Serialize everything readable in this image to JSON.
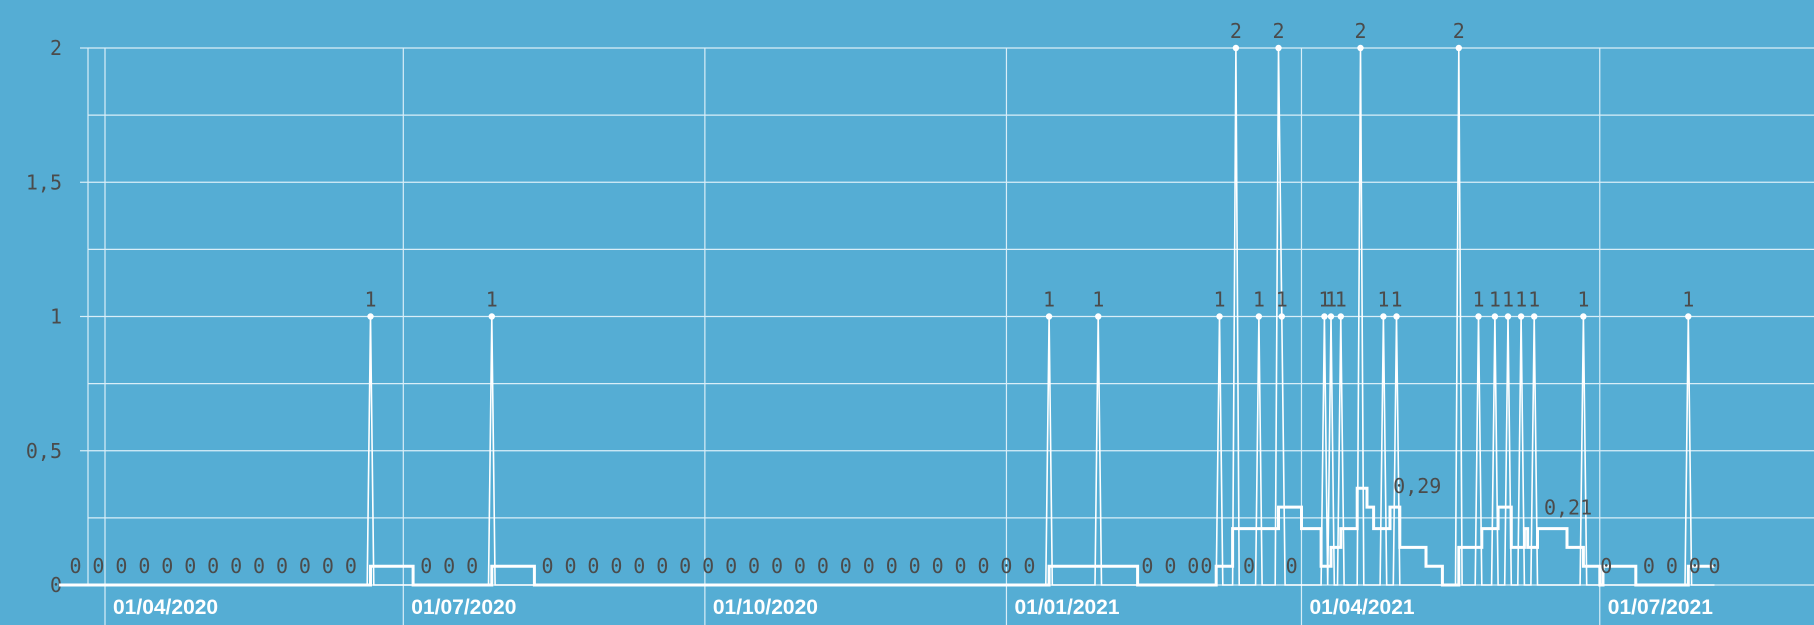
{
  "chart_data": {
    "type": "line",
    "grid": true,
    "ylim": [
      0,
      2
    ],
    "y_ticks": [
      "0",
      "0,5",
      "1",
      "1,5",
      "2"
    ],
    "x_ticks": [
      "01/04/2020",
      "01/07/2020",
      "01/10/2020",
      "01/01/2021",
      "01/04/2021",
      "01/07/2021"
    ],
    "x_range": [
      "2020-03-18",
      "2021-08-05"
    ],
    "series": [
      {
        "values_description_hidden": "",
        "points": [
          [
            "2020-03-19",
            0
          ],
          [
            "2020-06-20",
            0
          ],
          [
            "2020-06-21",
            1
          ],
          [
            "2020-06-22",
            0
          ],
          [
            "2020-07-27",
            0
          ],
          [
            "2020-07-28",
            1
          ],
          [
            "2020-07-29",
            0
          ],
          [
            "2021-01-13",
            0
          ],
          [
            "2021-01-14",
            1
          ],
          [
            "2021-01-15",
            0
          ],
          [
            "2021-01-28",
            0
          ],
          [
            "2021-01-29",
            1
          ],
          [
            "2021-01-30",
            0
          ],
          [
            "2021-03-06",
            0
          ],
          [
            "2021-03-07",
            1
          ],
          [
            "2021-03-08",
            0
          ],
          [
            "2021-03-11",
            0
          ],
          [
            "2021-03-12",
            2
          ],
          [
            "2021-03-13",
            0
          ],
          [
            "2021-03-18",
            0
          ],
          [
            "2021-03-19",
            1
          ],
          [
            "2021-03-20",
            0
          ],
          [
            "2021-03-24",
            0
          ],
          [
            "2021-03-25",
            2
          ],
          [
            "2021-03-26",
            1
          ],
          [
            "2021-03-27",
            0
          ],
          [
            "2021-04-07",
            0
          ],
          [
            "2021-04-08",
            1
          ],
          [
            "2021-04-09",
            0
          ],
          [
            "2021-04-10",
            1
          ],
          [
            "2021-04-11",
            0
          ],
          [
            "2021-04-12",
            0
          ],
          [
            "2021-04-13",
            1
          ],
          [
            "2021-04-14",
            0
          ],
          [
            "2021-04-18",
            0
          ],
          [
            "2021-04-19",
            2
          ],
          [
            "2021-04-20",
            0
          ],
          [
            "2021-04-25",
            0
          ],
          [
            "2021-04-26",
            1
          ],
          [
            "2021-04-27",
            0
          ],
          [
            "2021-04-29",
            0
          ],
          [
            "2021-04-30",
            1
          ],
          [
            "2021-05-01",
            0
          ],
          [
            "2021-05-18",
            0
          ],
          [
            "2021-05-19",
            2
          ],
          [
            "2021-05-20",
            0
          ],
          [
            "2021-05-24",
            0
          ],
          [
            "2021-05-25",
            1
          ],
          [
            "2021-05-26",
            0
          ],
          [
            "2021-05-29",
            0
          ],
          [
            "2021-05-30",
            1
          ],
          [
            "2021-05-31",
            0
          ],
          [
            "2021-06-02",
            0
          ],
          [
            "2021-06-03",
            1
          ],
          [
            "2021-06-04",
            0
          ],
          [
            "2021-06-06",
            0
          ],
          [
            "2021-06-07",
            1
          ],
          [
            "2021-06-08",
            0
          ],
          [
            "2021-06-10",
            0
          ],
          [
            "2021-06-11",
            1
          ],
          [
            "2021-06-12",
            0
          ],
          [
            "2021-06-25",
            0
          ],
          [
            "2021-06-26",
            1
          ],
          [
            "2021-06-27",
            0
          ],
          [
            "2021-07-27",
            0
          ],
          [
            "2021-07-28",
            1
          ],
          [
            "2021-07-29",
            0
          ],
          [
            "2021-08-05",
            0
          ]
        ]
      },
      {
        "points": [
          [
            "2020-03-18",
            0
          ],
          [
            "2020-06-21",
            0
          ],
          [
            "2020-06-21",
            0.07
          ],
          [
            "2020-07-04",
            0.07
          ],
          [
            "2020-07-04",
            0
          ],
          [
            "2020-07-28",
            0
          ],
          [
            "2020-07-28",
            0.07
          ],
          [
            "2020-08-10",
            0.07
          ],
          [
            "2020-08-10",
            0
          ],
          [
            "2021-01-14",
            0
          ],
          [
            "2021-01-14",
            0.07
          ],
          [
            "2021-01-28",
            0.07
          ],
          [
            "2021-01-29",
            0.07
          ],
          [
            "2021-02-10",
            0.07
          ],
          [
            "2021-02-10",
            0
          ],
          [
            "2021-03-06",
            0
          ],
          [
            "2021-03-06",
            0.07
          ],
          [
            "2021-03-11",
            0.07
          ],
          [
            "2021-03-11",
            0.21
          ],
          [
            "2021-03-19",
            0.21
          ],
          [
            "2021-03-19",
            0.21
          ],
          [
            "2021-03-24",
            0.21
          ],
          [
            "2021-03-25",
            0.21
          ],
          [
            "2021-03-25",
            0.29
          ],
          [
            "2021-04-01",
            0.29
          ],
          [
            "2021-04-01",
            0.21
          ],
          [
            "2021-04-07",
            0.21
          ],
          [
            "2021-04-07",
            0.07
          ],
          [
            "2021-04-10",
            0.07
          ],
          [
            "2021-04-10",
            0.14
          ],
          [
            "2021-04-13",
            0.14
          ],
          [
            "2021-04-13",
            0.21
          ],
          [
            "2021-04-18",
            0.21
          ],
          [
            "2021-04-18",
            0.36
          ],
          [
            "2021-04-21",
            0.36
          ],
          [
            "2021-04-21",
            0.29
          ],
          [
            "2021-04-23",
            0.29
          ],
          [
            "2021-04-23",
            0.21
          ],
          [
            "2021-04-26",
            0.21
          ],
          [
            "2021-04-26",
            0.21
          ],
          [
            "2021-04-28",
            0.21
          ],
          [
            "2021-04-28",
            0.29
          ],
          [
            "2021-05-01",
            0.29
          ],
          [
            "2021-05-01",
            0.14
          ],
          [
            "2021-05-09",
            0.14
          ],
          [
            "2021-05-09",
            0.07
          ],
          [
            "2021-05-14",
            0.07
          ],
          [
            "2021-05-14",
            0
          ],
          [
            "2021-05-19",
            0
          ],
          [
            "2021-05-19",
            0.14
          ],
          [
            "2021-05-26",
            0.14
          ],
          [
            "2021-05-26",
            0.21
          ],
          [
            "2021-05-31",
            0.21
          ],
          [
            "2021-05-31",
            0.29
          ],
          [
            "2021-06-04",
            0.29
          ],
          [
            "2021-06-04",
            0.14
          ],
          [
            "2021-06-08",
            0.14
          ],
          [
            "2021-06-08",
            0.21
          ],
          [
            "2021-06-09",
            0.21
          ],
          [
            "2021-06-09",
            0.14
          ],
          [
            "2021-06-12",
            0.14
          ],
          [
            "2021-06-12",
            0.21
          ],
          [
            "2021-06-21",
            0.21
          ],
          [
            "2021-06-21",
            0.14
          ],
          [
            "2021-06-26",
            0.14
          ],
          [
            "2021-06-26",
            0.07
          ],
          [
            "2021-07-01",
            0.07
          ],
          [
            "2021-07-01",
            0
          ],
          [
            "2021-07-02",
            0
          ],
          [
            "2021-07-02",
            0.07
          ],
          [
            "2021-07-12",
            0.07
          ],
          [
            "2021-07-12",
            0
          ],
          [
            "2021-07-28",
            0
          ],
          [
            "2021-07-28",
            0.07
          ],
          [
            "2021-08-05",
            0.07
          ]
        ]
      }
    ],
    "peak_labels": [
      [
        "2020-06-21",
        1,
        "1"
      ],
      [
        "2020-07-28",
        1,
        "1"
      ],
      [
        "2021-01-14",
        1,
        "1"
      ],
      [
        "2021-01-29",
        1,
        "1"
      ],
      [
        "2021-03-07",
        1,
        "1"
      ],
      [
        "2021-03-12",
        2,
        "2"
      ],
      [
        "2021-03-19",
        1,
        "1"
      ],
      [
        "2021-03-25",
        2,
        "2"
      ],
      [
        "2021-03-26",
        1,
        "1"
      ],
      [
        "2021-04-08",
        1,
        "1"
      ],
      [
        "2021-04-10",
        1,
        "1"
      ],
      [
        "2021-04-13",
        1,
        "1"
      ],
      [
        "2021-04-19",
        2,
        "2"
      ],
      [
        "2021-04-26",
        1,
        "1"
      ],
      [
        "2021-04-30",
        1,
        "1"
      ],
      [
        "2021-05-19",
        2,
        "2"
      ],
      [
        "2021-05-25",
        1,
        "1"
      ],
      [
        "2021-05-30",
        1,
        "1"
      ],
      [
        "2021-06-03",
        1,
        "1"
      ],
      [
        "2021-06-07",
        1,
        "1"
      ],
      [
        "2021-06-11",
        1,
        "1"
      ],
      [
        "2021-06-26",
        1,
        "1"
      ],
      [
        "2021-07-28",
        1,
        "1"
      ]
    ],
    "value_labels": [
      [
        "2021-04-29",
        0.29,
        "0,29"
      ],
      [
        "2021-06-14",
        0.21,
        "0,21"
      ]
    ],
    "zero_labels": [
      "2020-03-23",
      "2020-03-30",
      "2020-04-06",
      "2020-04-13",
      "2020-04-20",
      "2020-04-27",
      "2020-05-04",
      "2020-05-11",
      "2020-05-18",
      "2020-05-25",
      "2020-06-01",
      "2020-06-08",
      "2020-06-15",
      "2020-07-08",
      "2020-07-15",
      "2020-07-22",
      "2020-08-14",
      "2020-08-21",
      "2020-08-28",
      "2020-09-04",
      "2020-09-11",
      "2020-09-18",
      "2020-09-25",
      "2020-10-02",
      "2020-10-09",
      "2020-10-16",
      "2020-10-23",
      "2020-10-30",
      "2020-11-06",
      "2020-11-13",
      "2020-11-20",
      "2020-11-27",
      "2020-12-04",
      "2020-12-11",
      "2020-12-18",
      "2020-12-25",
      "2021-01-01",
      "2021-01-08",
      "2021-02-13",
      "2021-02-20",
      "2021-02-27",
      "2021-03-03",
      "2021-03-16",
      "2021-03-29",
      "2021-07-03",
      "2021-07-16",
      "2021-07-23",
      "2021-07-30",
      "2021-08-05"
    ]
  }
}
